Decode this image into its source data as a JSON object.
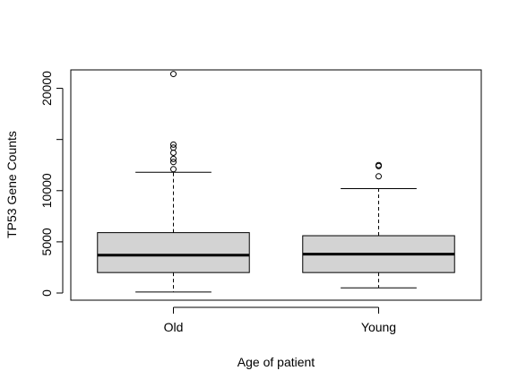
{
  "chart_data": {
    "type": "box",
    "title": "",
    "xlabel": "Age of patient",
    "ylabel": "TP53 Gene Counts",
    "ylim": [
      -700,
      21800
    ],
    "yticks": [
      0,
      5000,
      10000,
      20000
    ],
    "ytick_labels": [
      "0",
      "5000",
      "10000",
      "20000"
    ],
    "grid": false,
    "box_fill": "#d3d3d3",
    "categories": [
      "Old",
      "Young"
    ],
    "boxes": [
      {
        "category": "Old",
        "whisker_low": 100,
        "q1": 2000,
        "median": 3700,
        "q3": 5900,
        "whisker_high": 11800,
        "outliers": [
          12100,
          12800,
          13100,
          13700,
          14200,
          14500,
          21400
        ]
      },
      {
        "category": "Young",
        "whisker_low": 500,
        "q1": 2000,
        "median": 3800,
        "q3": 5600,
        "whisker_high": 10200,
        "outliers": [
          11400,
          12400,
          12500
        ]
      }
    ]
  }
}
